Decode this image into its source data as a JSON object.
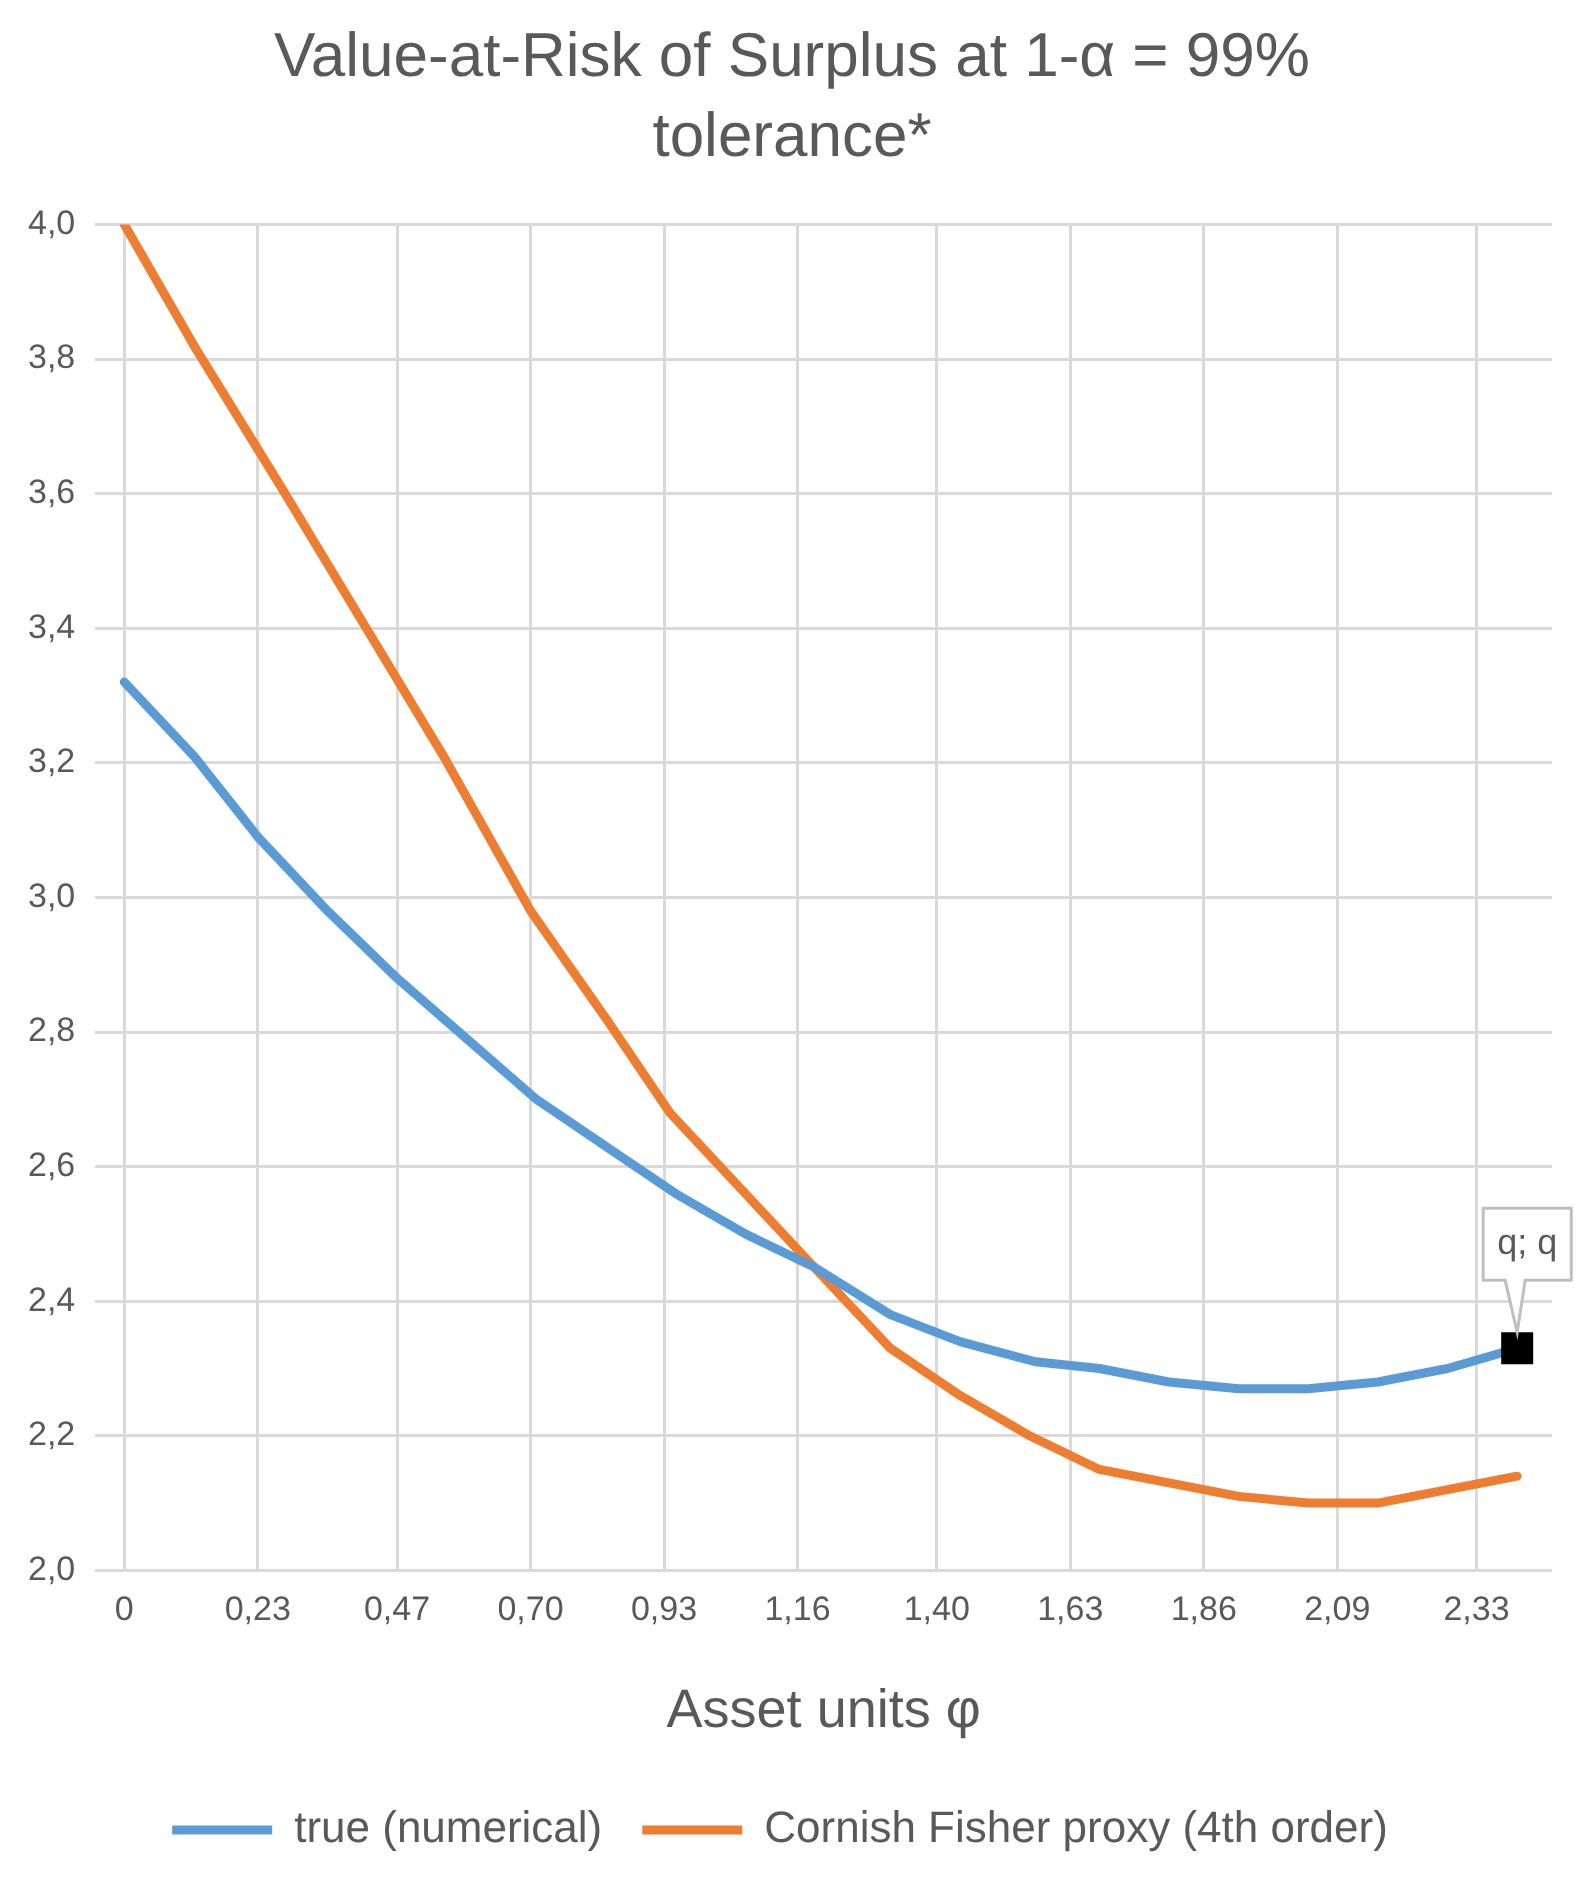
{
  "chart_data": {
    "type": "line",
    "title": "Value-at-Risk of Surplus at 1-α = 99% tolerance*",
    "xlabel": "Asset units φ",
    "xlim": [
      -0.05,
      2.46
    ],
    "xticks": [
      0,
      {
        "value": 0.23,
        "label": "0,23"
      },
      {
        "value": 0.47,
        "label": "0,47"
      },
      {
        "value": 0.7,
        "label": "0,70"
      },
      {
        "value": 0.93,
        "label": "0,93"
      },
      {
        "value": 1.16,
        "label": "1,16"
      },
      {
        "value": 1.4,
        "label": "1,40"
      },
      {
        "value": 1.63,
        "label": "1,63"
      },
      {
        "value": 1.86,
        "label": "1,86"
      },
      {
        "value": 2.09,
        "label": "2,09"
      },
      {
        "value": 2.33,
        "label": "2,33"
      }
    ],
    "ylim": [
      2.0,
      4.0
    ],
    "yticks": [
      {
        "value": 2.0,
        "label": "2,0"
      },
      {
        "value": 2.2,
        "label": "2,2"
      },
      {
        "value": 2.4,
        "label": "2,4"
      },
      {
        "value": 2.6,
        "label": "2,6"
      },
      {
        "value": 2.8,
        "label": "2,8"
      },
      {
        "value": 3.0,
        "label": "3,0"
      },
      {
        "value": 3.2,
        "label": "3,2"
      },
      {
        "value": 3.4,
        "label": "3,4"
      },
      {
        "value": 3.6,
        "label": "3,6"
      },
      {
        "value": 3.8,
        "label": "3,8"
      },
      {
        "value": 4.0,
        "label": "4,0"
      }
    ],
    "series": [
      {
        "name": "true (numerical)",
        "color": "#5b9bd5",
        "x": [
          0,
          0.12,
          0.23,
          0.35,
          0.47,
          0.59,
          0.71,
          0.83,
          0.95,
          1.07,
          1.19,
          1.32,
          1.44,
          1.57,
          1.68,
          1.8,
          1.92,
          2.04,
          2.16,
          2.28,
          2.4
        ],
        "values": [
          3.32,
          3.21,
          3.09,
          2.98,
          2.88,
          2.79,
          2.7,
          2.63,
          2.56,
          2.5,
          2.45,
          2.38,
          2.34,
          2.31,
          2.3,
          2.28,
          2.27,
          2.27,
          2.28,
          2.3,
          2.33
        ]
      },
      {
        "name": "Cornish Fisher proxy (4th order)",
        "color": "#ed7d31",
        "x": [
          0,
          0.12,
          0.27,
          0.41,
          0.55,
          0.7,
          0.83,
          0.94,
          1.07,
          1.2,
          1.32,
          1.44,
          1.56,
          1.68,
          1.8,
          1.92,
          2.04,
          2.16,
          2.28,
          2.4
        ],
        "values": [
          4.0,
          3.82,
          3.61,
          3.41,
          3.21,
          2.98,
          2.82,
          2.68,
          2.56,
          2.44,
          2.33,
          2.26,
          2.2,
          2.15,
          2.13,
          2.11,
          2.1,
          2.1,
          2.12,
          2.14
        ]
      }
    ],
    "annotations": [
      {
        "text": "q; q",
        "x": 2.4,
        "y": 2.33
      }
    ],
    "grid": true,
    "legend": "bottom",
    "marker": "none",
    "line_style": "solid"
  }
}
